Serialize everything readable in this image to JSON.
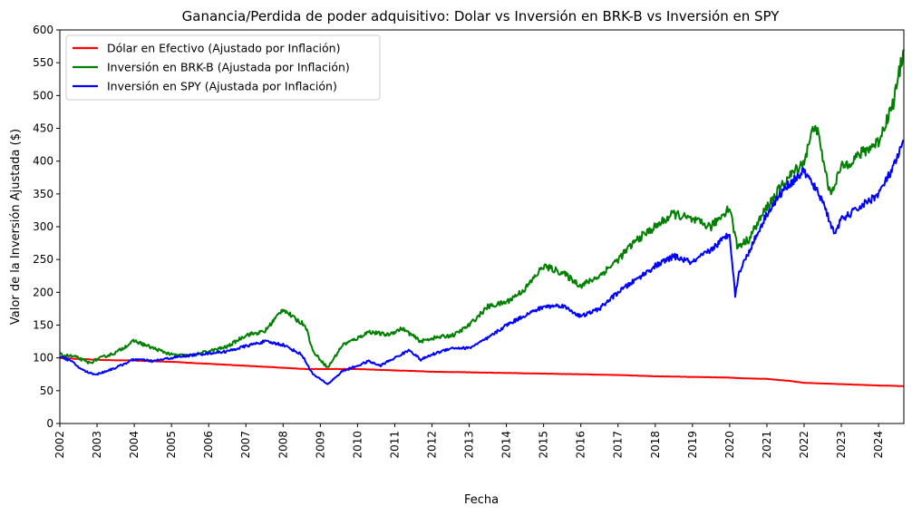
{
  "chart_data": {
    "type": "line",
    "title": "Ganancia/Perdida de poder adquisitivo: Dolar vs Inversión en BRK-B vs Inversión en SPY",
    "xlabel": "Fecha",
    "ylabel": "Valor de la Inversión Ajustada ($)",
    "xlim": [
      2002.0,
      2024.68
    ],
    "ylim": [
      0,
      600
    ],
    "x_ticks": [
      "2002",
      "2003",
      "2004",
      "2005",
      "2006",
      "2007",
      "2008",
      "2009",
      "2010",
      "2011",
      "2012",
      "2013",
      "2014",
      "2015",
      "2016",
      "2017",
      "2018",
      "2019",
      "2020",
      "2021",
      "2022",
      "2023",
      "2024"
    ],
    "y_ticks": [
      0,
      50,
      100,
      150,
      200,
      250,
      300,
      350,
      400,
      450,
      500,
      550,
      600
    ],
    "grid": false,
    "legend_position": "top-left",
    "series": [
      {
        "name": "Dólar en Efectivo (Ajustado por Inflación)",
        "color": "#ff0000",
        "x": [
          2002.0,
          2003.0,
          2004.0,
          2005.0,
          2006.0,
          2007.0,
          2008.0,
          2008.6,
          2009.0,
          2010.0,
          2011.0,
          2012.0,
          2013.0,
          2014.0,
          2015.0,
          2016.0,
          2017.0,
          2018.0,
          2019.0,
          2020.0,
          2020.3,
          2021.0,
          2021.6,
          2022.0,
          2022.5,
          2023.0,
          2024.0,
          2024.68
        ],
        "values": [
          100,
          97,
          96,
          94,
          91,
          88,
          85,
          83,
          83,
          83,
          81,
          79,
          78,
          77,
          76,
          75,
          74,
          72,
          71,
          70,
          69,
          68,
          65,
          62,
          61,
          60,
          58,
          57
        ]
      },
      {
        "name": "Inversión en BRK-B (Ajustada por Inflación)",
        "color": "#008000",
        "x": [
          2002.0,
          2002.4,
          2002.8,
          2003.0,
          2003.5,
          2004.0,
          2004.5,
          2005.0,
          2005.5,
          2006.0,
          2006.5,
          2007.0,
          2007.5,
          2008.0,
          2008.3,
          2008.6,
          2008.8,
          2009.2,
          2009.6,
          2010.0,
          2010.3,
          2010.8,
          2011.2,
          2011.7,
          2012.0,
          2012.6,
          2013.0,
          2013.5,
          2014.0,
          2014.5,
          2015.0,
          2015.5,
          2016.0,
          2016.5,
          2017.0,
          2017.5,
          2018.0,
          2018.5,
          2019.0,
          2019.5,
          2020.0,
          2020.2,
          2020.5,
          2021.0,
          2021.5,
          2022.0,
          2022.3,
          2022.7,
          2023.0,
          2023.5,
          2024.0,
          2024.4,
          2024.68
        ],
        "values": [
          105,
          102,
          92,
          98,
          108,
          126,
          115,
          105,
          103,
          110,
          117,
          135,
          140,
          175,
          160,
          150,
          110,
          85,
          120,
          130,
          140,
          135,
          145,
          125,
          130,
          135,
          150,
          178,
          185,
          205,
          240,
          230,
          210,
          225,
          250,
          280,
          300,
          320,
          310,
          300,
          330,
          270,
          280,
          330,
          370,
          400,
          460,
          350,
          390,
          410,
          430,
          490,
          570
        ]
      },
      {
        "name": "Inversión en SPY (Ajustada por Inflación)",
        "color": "#0000ff",
        "x": [
          2002.0,
          2002.3,
          2002.6,
          2002.8,
          2003.0,
          2003.5,
          2004.0,
          2004.5,
          2005.0,
          2005.5,
          2006.0,
          2006.5,
          2007.0,
          2007.5,
          2008.0,
          2008.5,
          2008.8,
          2009.2,
          2009.6,
          2010.0,
          2010.3,
          2010.6,
          2011.0,
          2011.4,
          2011.7,
          2012.0,
          2012.5,
          2013.0,
          2013.5,
          2014.0,
          2014.5,
          2015.0,
          2015.5,
          2016.0,
          2016.5,
          2017.0,
          2017.5,
          2018.0,
          2018.5,
          2019.0,
          2019.5,
          2020.0,
          2020.15,
          2020.25,
          2020.5,
          2021.0,
          2021.5,
          2022.0,
          2022.5,
          2022.8,
          2023.0,
          2023.5,
          2024.0,
          2024.4,
          2024.68
        ],
        "values": [
          103,
          95,
          82,
          77,
          75,
          85,
          98,
          95,
          100,
          104,
          107,
          110,
          118,
          125,
          120,
          105,
          75,
          60,
          80,
          88,
          95,
          88,
          100,
          112,
          97,
          105,
          115,
          115,
          130,
          150,
          165,
          178,
          180,
          163,
          175,
          200,
          220,
          240,
          255,
          245,
          265,
          290,
          195,
          230,
          260,
          320,
          360,
          385,
          340,
          290,
          310,
          330,
          350,
          390,
          430
        ]
      }
    ]
  }
}
